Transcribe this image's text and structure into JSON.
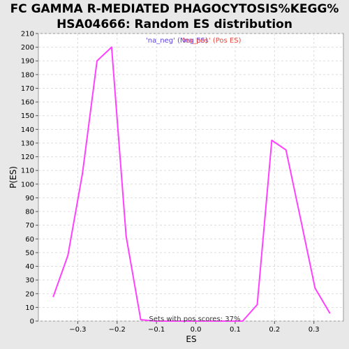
{
  "chart_data": {
    "type": "line",
    "title_lines": [
      "FC GAMMA R-MEDIATED PHAGOCYTOSIS%KEGG%",
      "HSA04666: Random ES distribution"
    ],
    "xlabel": "ES",
    "ylabel": "P(ES)",
    "xlim": [
      -0.4,
      0.375
    ],
    "ylim": [
      0,
      210
    ],
    "x_ticks": [
      {
        "value": -0.3,
        "label": "−0.3"
      },
      {
        "value": -0.2,
        "label": "−0.2"
      },
      {
        "value": -0.1,
        "label": "−0.1"
      },
      {
        "value": 0.0,
        "label": "0.0"
      },
      {
        "value": 0.1,
        "label": "0.1"
      },
      {
        "value": 0.2,
        "label": "0.2"
      },
      {
        "value": 0.3,
        "label": "0.3"
      }
    ],
    "y_ticks": [
      0,
      10,
      20,
      30,
      40,
      50,
      60,
      70,
      80,
      90,
      100,
      110,
      120,
      130,
      140,
      150,
      160,
      170,
      180,
      190,
      200,
      210
    ],
    "grid": true,
    "legend": [
      {
        "label": "'na_neg' (Neg ES)",
        "color": "#5a3ee0"
      },
      {
        "label": "'na_pos' (Pos ES)",
        "color": "#e8453c"
      }
    ],
    "legend_placement": "top",
    "annotation": "Sets with pos scores: 37%",
    "series": [
      {
        "color": "#ff40ff",
        "x": [
          -0.362,
          -0.325,
          -0.288,
          -0.251,
          -0.214,
          -0.177,
          -0.14,
          -0.103,
          -0.066,
          -0.029,
          0.008,
          0.045,
          0.082,
          0.119,
          0.156,
          0.193,
          0.229,
          0.266,
          0.303,
          0.34
        ],
        "y": [
          18,
          48,
          108,
          190,
          200,
          62,
          1,
          0,
          0,
          0,
          0,
          0,
          0,
          0,
          12,
          132,
          125,
          75,
          24,
          6
        ]
      }
    ]
  }
}
